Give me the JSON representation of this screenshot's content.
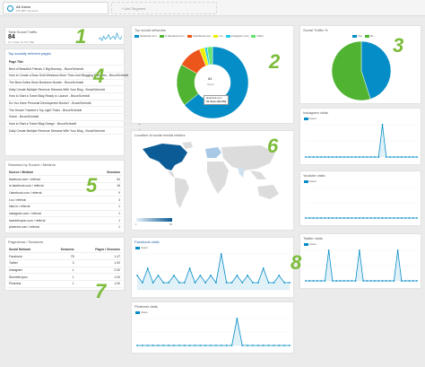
{
  "segments": {
    "active": {
      "title": "All Users",
      "subtitle": "100.00% Sessions"
    },
    "add_label": "+ Add Segment"
  },
  "widgets": {
    "total_social": {
      "title": "Total Social Traffic",
      "value": "84",
      "caption": "% of Total: 10.7% (784)"
    },
    "top_pages": {
      "title": "Top socially referred pages",
      "columns": [
        "Page Title",
        "Users"
      ],
      "rows": [
        [
          "Best of Beautiful Friends 2 Big Itinerary - BruceSchmidt",
          "7"
        ],
        [
          "How to Create a Buzz Sold Windows More Than Just Blogging Practices - BruceSchmidt",
          "7"
        ],
        [
          "The Best Online Book Business Novels - BruceSchmidt",
          "5"
        ],
        [
          "Daily Create Multiple Revenue Streams With Your Blog - BruceSchmidt",
          "5"
        ],
        [
          "How to Start a Travel Blog Ready to Launch - BruceSchmidt",
          "4"
        ],
        [
          "Do You Have Personal Development Books? - BruceSchmidt",
          "3"
        ],
        [
          "The Dream Traveler's Top Light Tricks - BruceSchmidt",
          "3"
        ],
        [
          "Home - BruceSchmidt",
          "3"
        ],
        [
          "How to Start a Travel Blog Design - BruceSchmidt",
          "3"
        ],
        [
          "Daily Create Multiple Revenue Streams With Your Blog - BruceSchmidt",
          "2"
        ]
      ]
    },
    "sessions_source": {
      "title": "Sessions by Source / Medium",
      "columns": [
        "Source / Medium",
        "Sessions"
      ],
      "rows": [
        [
          "facebook.com / referral",
          "54"
        ],
        [
          "m.facebook.com / referral",
          "16"
        ],
        [
          "l.facebook.com / referral",
          "9"
        ],
        [
          "t.co / referral",
          "3"
        ],
        [
          "lnkd.in / referral",
          "1"
        ],
        [
          "instagram.com / referral",
          "1"
        ],
        [
          "stumbleupon.com / referral",
          "1"
        ],
        [
          "pinterest.com / referral",
          "1"
        ]
      ]
    },
    "pageviews_sessions": {
      "title": "Pageviews / Sessions",
      "columns": [
        "Social Network",
        "Sessions",
        "Pages / Sessions"
      ],
      "rows": [
        [
          "Facebook",
          "78",
          "1.47"
        ],
        [
          "Twitter",
          "3",
          "1.00"
        ],
        [
          "Instagram",
          "1",
          "2.00"
        ],
        [
          "StumbleUpon",
          "1",
          "1.00"
        ],
        [
          "Pinterest",
          "1",
          "1.00"
        ]
      ]
    },
    "top_networks": {
      "title": "Top social networks",
      "legend": [
        "facebook.com",
        "m.facebook.com",
        "l.facebook.com",
        "t.co",
        "instagram.com",
        "Other"
      ],
      "center_value": "84",
      "center_label": "Users",
      "tooltip_line1": "facebook.com",
      "tooltip_line2": "54 Users (64.3%)"
    },
    "social_pct": {
      "title": "Social Traffic %",
      "legend": [
        "Yes",
        "No"
      ]
    },
    "map": {
      "title": "Location of social media visitors",
      "scale_min": "1",
      "scale_max": "65"
    },
    "instagram": {
      "title": "Instagram visits",
      "series": "Users"
    },
    "youtube": {
      "title": "Youtube visits",
      "series": "Users"
    },
    "twitter": {
      "title": "Twitter visits",
      "series": "Users"
    },
    "facebook": {
      "title": "Facebook visits",
      "series": "Users"
    },
    "pinterest": {
      "title": "Pinterest visits",
      "series": "Users"
    }
  },
  "annotations": [
    "1",
    "2",
    "3",
    "4",
    "5",
    "6",
    "7",
    "8"
  ],
  "colors": {
    "accent_blue": "#058dc7",
    "annotation_green": "#7cbc3a",
    "slices": [
      "#058dc7",
      "#50b432",
      "#ed561b",
      "#edef00",
      "#24cbe5",
      "#64e572"
    ]
  },
  "chart_data": [
    {
      "type": "pie",
      "name": "Top social networks",
      "categories": [
        "facebook.com",
        "m.facebook.com",
        "l.facebook.com",
        "t.co",
        "instagram.com",
        "Other"
      ],
      "values": [
        54,
        16,
        9,
        2,
        1,
        2
      ]
    },
    {
      "type": "pie",
      "name": "Social Traffic %",
      "categories": [
        "Yes",
        "No"
      ],
      "values": [
        45,
        55
      ]
    },
    {
      "type": "line",
      "name": "Facebook visits",
      "values": [
        2,
        1,
        3,
        1,
        2,
        1,
        1,
        2,
        1,
        1,
        3,
        1,
        2,
        1,
        2,
        1,
        5,
        1,
        1,
        2,
        1,
        2,
        1,
        1,
        3,
        1,
        1,
        2,
        1,
        1
      ]
    },
    {
      "type": "line",
      "name": "Instagram visits",
      "values": [
        0,
        0,
        0,
        0,
        0,
        0,
        0,
        0,
        0,
        0,
        0,
        0,
        0,
        0,
        0,
        0,
        0,
        0,
        0,
        0,
        1,
        0,
        0,
        0,
        0,
        0,
        0,
        0,
        0,
        0
      ]
    },
    {
      "type": "line",
      "name": "Youtube visits",
      "values": [
        0,
        0,
        0,
        0,
        0,
        0,
        0,
        0,
        0,
        0,
        0,
        0,
        0,
        0,
        0,
        0,
        0,
        0,
        0,
        0,
        0,
        0,
        0,
        0,
        0,
        0,
        0,
        0,
        0,
        0
      ]
    },
    {
      "type": "line",
      "name": "Twitter visits",
      "values": [
        0,
        0,
        0,
        0,
        0,
        0,
        1,
        0,
        0,
        0,
        0,
        0,
        0,
        0,
        1,
        0,
        0,
        0,
        0,
        0,
        0,
        0,
        0,
        0,
        1,
        0,
        0,
        0,
        0,
        0
      ]
    },
    {
      "type": "line",
      "name": "Pinterest visits",
      "values": [
        0,
        0,
        0,
        0,
        0,
        0,
        0,
        0,
        0,
        0,
        0,
        0,
        0,
        0,
        0,
        0,
        0,
        0,
        0,
        1,
        0,
        0,
        0,
        0,
        0,
        0,
        0,
        0,
        0,
        0
      ]
    },
    {
      "type": "line",
      "name": "Total Social Traffic sparkline",
      "values": [
        2,
        3,
        1,
        4,
        2,
        3,
        5,
        2,
        3,
        4,
        2,
        6,
        3,
        2,
        4
      ]
    }
  ]
}
